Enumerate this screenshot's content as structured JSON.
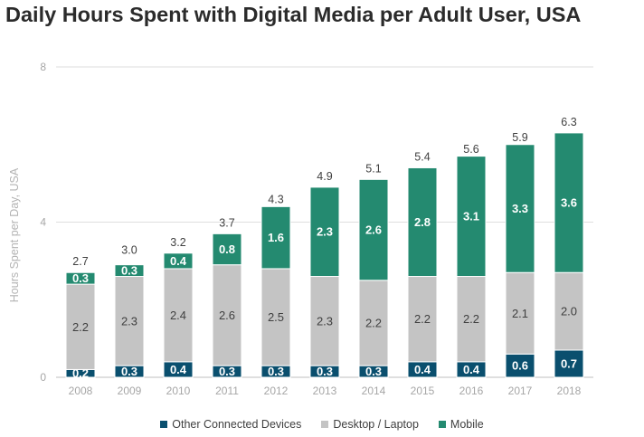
{
  "chart_data": {
    "type": "bar",
    "stacked": true,
    "title": "Daily Hours Spent with Digital Media per Adult User, USA",
    "ylabel": "Hours Spent per Day, USA",
    "xlabel": "",
    "ylim": [
      0,
      8
    ],
    "yticks": [
      0,
      4,
      8
    ],
    "grid": true,
    "legend_position": "bottom",
    "categories": [
      "2008",
      "2009",
      "2010",
      "2011",
      "2012",
      "2013",
      "2014",
      "2015",
      "2016",
      "2017",
      "2018"
    ],
    "series": [
      {
        "name": "Other Connected Devices",
        "color": "#0a4f6e",
        "values": [
          0.2,
          0.3,
          0.4,
          0.3,
          0.3,
          0.3,
          0.3,
          0.4,
          0.4,
          0.6,
          0.7
        ],
        "labels": [
          "0.2",
          "0.3",
          "0.4",
          "0.3",
          "0.3",
          "0.3",
          "0.3",
          "0.4",
          "0.4",
          "0.6",
          "0.7"
        ],
        "label_color": "#ffffff",
        "label_bold": true
      },
      {
        "name": "Desktop / Laptop",
        "color": "#c4c4c4",
        "values": [
          2.2,
          2.3,
          2.4,
          2.6,
          2.5,
          2.3,
          2.2,
          2.2,
          2.2,
          2.1,
          2.0
        ],
        "labels": [
          "2.2",
          "2.3",
          "2.4",
          "2.6",
          "2.5",
          "2.3",
          "2.2",
          "2.2",
          "2.2",
          "2.1",
          "2.0"
        ],
        "label_color": "#404040",
        "label_bold": false
      },
      {
        "name": "Mobile",
        "color": "#248a70",
        "values": [
          0.3,
          0.3,
          0.4,
          0.8,
          1.6,
          2.3,
          2.6,
          2.8,
          3.1,
          3.3,
          3.6
        ],
        "labels": [
          "0.3",
          "0.3",
          "0.4",
          "0.8",
          "1.6",
          "2.3",
          "2.6",
          "2.8",
          "3.1",
          "3.3",
          "3.6"
        ],
        "label_color": "#ffffff",
        "label_bold": true
      }
    ],
    "totals": [
      2.7,
      3.0,
      3.2,
      3.7,
      4.3,
      4.9,
      5.1,
      5.4,
      5.6,
      5.9,
      6.3
    ],
    "total_labels": [
      "2.7",
      "3.0",
      "3.2",
      "3.7",
      "4.3",
      "4.9",
      "5.1",
      "5.4",
      "5.6",
      "5.9",
      "6.3"
    ]
  }
}
